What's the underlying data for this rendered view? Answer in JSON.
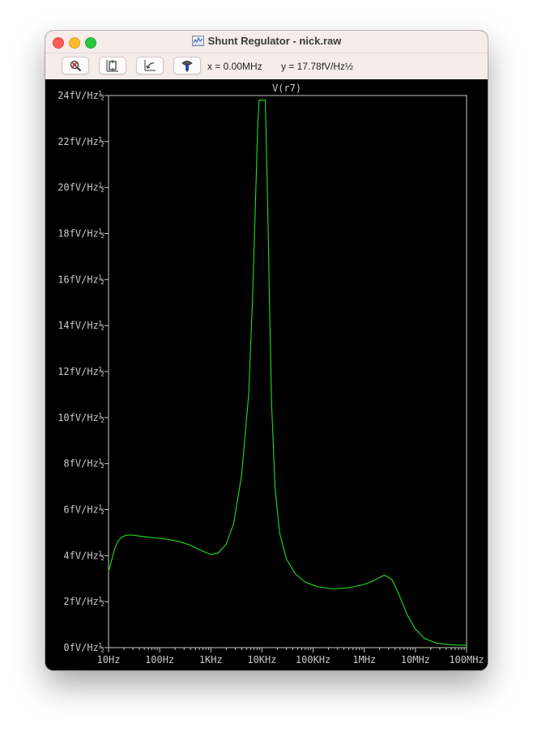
{
  "window": {
    "title": "Shunt Regulator - nick.raw"
  },
  "toolbar": {
    "buttons": [
      {
        "name": "zoom-out-button",
        "icon": "magnifier-cross-icon"
      },
      {
        "name": "zoom-fit-button",
        "icon": "zoom-extents-icon"
      },
      {
        "name": "zoom-back-button",
        "icon": "zoom-back-icon"
      },
      {
        "name": "probe-button",
        "icon": "probe-icon"
      }
    ],
    "x_readout": "x = 0.00MHz",
    "y_readout": "y = 17.78fV/Hz½"
  },
  "colors": {
    "trace": "#22dd22",
    "frame": "#c8c8c8",
    "background": "#000000",
    "titlebar": "#f6ecea"
  },
  "chart_data": {
    "type": "line",
    "title": "V(r7)",
    "x_scale": "log",
    "xlim": [
      10,
      100000000
    ],
    "ylim": [
      0,
      24
    ],
    "x_ticks": [
      10,
      100,
      1000,
      10000,
      100000,
      1000000,
      10000000,
      100000000
    ],
    "x_tick_labels": [
      "10Hz",
      "100Hz",
      "1KHz",
      "10KHz",
      "100KHz",
      "1MHz",
      "10MHz",
      "100MHz"
    ],
    "y_ticks": [
      0,
      2,
      4,
      6,
      8,
      10,
      12,
      14,
      16,
      18,
      20,
      22,
      24
    ],
    "y_tick_labels": [
      "0fV/Hz½",
      "2fV/Hz½",
      "4fV/Hz½",
      "6fV/Hz½",
      "8fV/Hz½",
      "10fV/Hz½",
      "12fV/Hz½",
      "14fV/Hz½",
      "16fV/Hz½",
      "18fV/Hz½",
      "20fV/Hz½",
      "22fV/Hz½",
      "24fV/Hz½"
    ],
    "grid": false,
    "series": [
      {
        "name": "V(r7)",
        "x": [
          10,
          11.5,
          13,
          15,
          18,
          22,
          28,
          40,
          60,
          100,
          150,
          250,
          400,
          600,
          1000,
          1400,
          2000,
          2800,
          4000,
          5500,
          6500,
          7500,
          8200,
          8800,
          9300,
          9700,
          10000,
          11200,
          11600,
          12000,
          13000,
          14000,
          15500,
          18000,
          22000,
          30000,
          45000,
          70000,
          120000,
          250000,
          500000,
          1000000,
          1500000,
          2000000,
          2500000,
          3500000,
          5000000,
          7000000,
          10000000,
          15000000,
          25000000,
          50000000,
          100000000
        ],
        "y": [
          3.3,
          3.8,
          4.25,
          4.6,
          4.8,
          4.88,
          4.9,
          4.85,
          4.8,
          4.75,
          4.7,
          4.6,
          4.45,
          4.25,
          4.05,
          4.12,
          4.5,
          5.4,
          7.5,
          11,
          15,
          19.5,
          22.5,
          23.8,
          23.8,
          23.8,
          23.8,
          23.8,
          23.8,
          22.5,
          19,
          15,
          10.5,
          7,
          5,
          3.85,
          3.2,
          2.85,
          2.65,
          2.55,
          2.6,
          2.75,
          2.9,
          3.05,
          3.15,
          2.95,
          2.2,
          1.4,
          0.8,
          0.4,
          0.2,
          0.12,
          0.1
        ]
      }
    ]
  }
}
